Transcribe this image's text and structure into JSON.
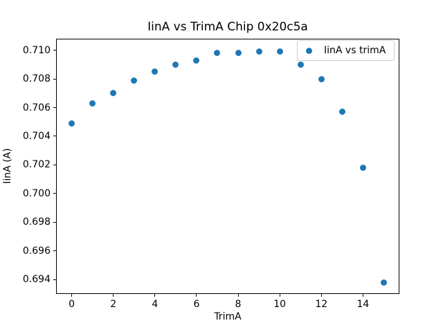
{
  "figure": {
    "background": "#ffffff"
  },
  "chart_data": {
    "type": "scatter",
    "title": "IinA vs TrimA Chip 0x20c5a",
    "xlabel": "TrimA",
    "ylabel": "IinA (A)",
    "legend": {
      "label": "IinA vs trimA",
      "position": "upper right",
      "marker_icon": "dot-marker-icon"
    },
    "x": [
      0,
      1,
      2,
      3,
      4,
      5,
      6,
      7,
      8,
      9,
      10,
      11,
      12,
      13,
      14,
      15
    ],
    "series": [
      {
        "name": "IinA vs trimA",
        "values": [
          0.7049,
          0.7063,
          0.707,
          0.7079,
          0.7085,
          0.709,
          0.7093,
          0.7098,
          0.7098,
          0.7099,
          0.7099,
          0.709,
          0.708,
          0.7057,
          0.7018,
          0.6938
        ]
      }
    ],
    "xlim": [
      -0.75,
      15.75
    ],
    "ylim": [
      0.693,
      0.7108
    ],
    "xticks": [
      0,
      2,
      4,
      6,
      8,
      10,
      12,
      14
    ],
    "yticks": [
      0.694,
      0.696,
      0.698,
      0.7,
      0.702,
      0.704,
      0.706,
      0.708,
      0.71
    ],
    "ytick_decimals": 3,
    "grid": false,
    "marker_color": "#1f77b4",
    "axis_color": "#000000",
    "background": "#ffffff"
  }
}
